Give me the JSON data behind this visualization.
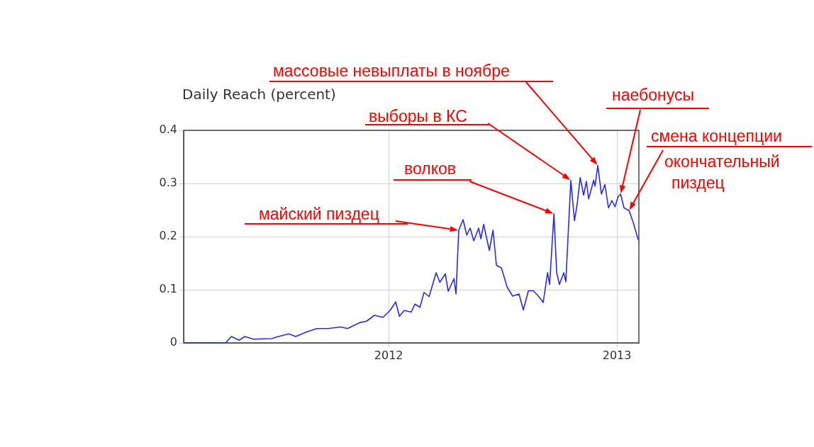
{
  "chart_data": {
    "type": "line",
    "title": "Daily Reach (percent)",
    "x": [
      2011.102,
      2011.286,
      2011.311,
      2011.345,
      2011.37,
      2011.407,
      2011.488,
      2011.509,
      2011.562,
      2011.593,
      2011.643,
      2011.686,
      2011.736,
      2011.789,
      2011.82,
      2011.873,
      2011.904,
      2011.938,
      2011.975,
      2012.006,
      2012.031,
      2012.047,
      2012.068,
      2012.099,
      2012.115,
      2012.137,
      2012.155,
      2012.177,
      2012.208,
      2012.224,
      2012.248,
      2012.261,
      2012.286,
      2012.295,
      2012.307,
      2012.326,
      2012.342,
      2012.357,
      2012.373,
      2012.394,
      2012.404,
      2012.416,
      2012.441,
      2012.457,
      2012.472,
      2012.494,
      2012.519,
      2012.543,
      2012.571,
      2012.59,
      2012.612,
      2012.634,
      2012.658,
      2012.677,
      2012.696,
      2012.705,
      2012.724,
      2012.736,
      2012.748,
      2012.767,
      2012.776,
      2012.798,
      2012.814,
      2012.826,
      2012.839,
      2012.854,
      2012.866,
      2012.876,
      2012.898,
      2012.904,
      2012.916,
      2012.932,
      2012.947,
      2012.963,
      2012.978,
      2012.991,
      2013.006,
      2013.016,
      2013.031,
      2013.053,
      2013.071,
      2013.093
    ],
    "series": [
      {
        "color": "#2a2aee",
        "values": [
          0,
          0,
          0.012,
          0.005,
          0.012,
          0.007,
          0.008,
          0.011,
          0.017,
          0.012,
          0.021,
          0.027,
          0.027,
          0.03,
          0.027,
          0.038,
          0.041,
          0.052,
          0.048,
          0.061,
          0.077,
          0.05,
          0.061,
          0.058,
          0.073,
          0.067,
          0.095,
          0.087,
          0.132,
          0.114,
          0.13,
          0.097,
          0.121,
          0.092,
          0.212,
          0.232,
          0.203,
          0.216,
          0.192,
          0.216,
          0.196,
          0.223,
          0.174,
          0.212,
          0.146,
          0.141,
          0.105,
          0.088,
          0.092,
          0.062,
          0.098,
          0.098,
          0.087,
          0.076,
          0.132,
          0.11,
          0.243,
          0.132,
          0.11,
          0.132,
          0.115,
          0.306,
          0.23,
          0.262,
          0.311,
          0.278,
          0.304,
          0.271,
          0.306,
          0.295,
          0.334,
          0.28,
          0.298,
          0.254,
          0.268,
          0.256,
          0.276,
          0.28,
          0.254,
          0.249,
          0.227,
          0.194
        ]
      }
    ],
    "xlim": [
      2011.102,
      2013.096
    ],
    "xticks": [
      2012,
      2013
    ],
    "ylim": [
      0,
      0.4
    ],
    "yticks": [
      0,
      0.1,
      0.2,
      0.3,
      0.4
    ],
    "grid": true,
    "legend": false,
    "marker": "none",
    "line_style": "solid",
    "annotations": [
      {
        "text": "массовые невыплаты в ноябре",
        "x": 2012.916,
        "y": 0.334
      },
      {
        "text": "выборы в КС",
        "x": 2012.798,
        "y": 0.306
      },
      {
        "text": "наебонусы",
        "x": 2013.016,
        "y": 0.28
      },
      {
        "text": "смена концепции",
        "x": 2013.053,
        "y": 0.249
      },
      "окончательный пиздец",
      {
        "text": "волков",
        "x": 2012.724,
        "y": 0.243
      },
      {
        "text": "майский пиздец",
        "x": 2012.307,
        "y": 0.212
      }
    ]
  }
}
